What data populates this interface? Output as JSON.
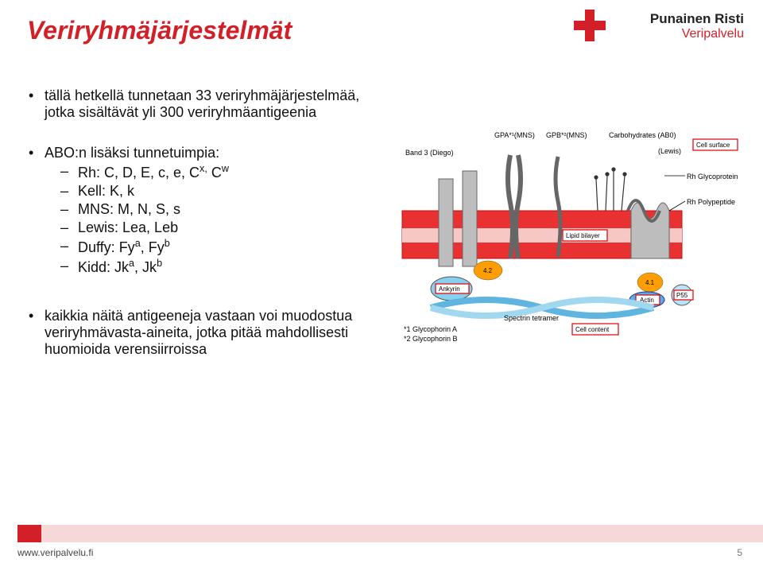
{
  "title": "Veriryhmäjärjestelmät",
  "logo": {
    "line1": "Punainen Risti",
    "line2": "Veripalvelu"
  },
  "bullets": {
    "intro": "tällä hetkellä tunnetaan 33 veriryhmäjärjestelmää, jotka sisältävät yli 300 veriryhmäantigeenia",
    "sub_heading": "ABO:n lisäksi tunnetuimpia:",
    "items": [
      {
        "html": "Rh: C, D, E, c, e, C<sup>x,</sup> C<sup>w</sup>"
      },
      {
        "html": "Kell: K, k"
      },
      {
        "html": "MNS: M, N, S, s"
      },
      {
        "html": "Lewis: Lea, Leb"
      },
      {
        "html": "Duffy: Fy<sup>a</sup>, Fy<sup>b</sup>"
      },
      {
        "html": "Kidd: Jk<sup>a</sup>, Jk<sup>b</sup>"
      }
    ],
    "conclusion": "kaikkia näitä antigeeneja vastaan voi muodostua veriryhmävasta-aineita, jotka pitää mahdollisesti huomioida verensiirroissa"
  },
  "footer": {
    "url": "www.veripalvelu.fi",
    "page": "5"
  },
  "diagram": {
    "cell_surface": "Cell surface",
    "lipid_bilayer": "Lipid bilayer",
    "cell_content": "Cell content",
    "labels": {
      "band3": "Band 3 (Diego)",
      "gpa": "GPA*¹(MNS)",
      "gpb": "GPB*²(MNS)",
      "carb": "Carbohydrates (AB0)",
      "sub_carb": "(Lewis)",
      "rh_glyco": "Rh Glycoprotein",
      "rh_poly": "Rh Polypeptide",
      "actin": "Actin",
      "spectrin": "Spectrin tetramer",
      "ankyrin": "Ankyrin",
      "p55": "P55",
      "note1": "*1 Glycophorin A",
      "note2": "*2 Glycophorin B",
      "n42": "4.2",
      "n41": "4.1"
    },
    "colors": {
      "membrane_bg": "#ffffff",
      "bilayer": "#e93131",
      "bilayer_stroke": "#b11",
      "protein_fill": "#bdbdbd",
      "protein_stroke": "#666",
      "oval": "#ff9e00",
      "actin": "#55acee",
      "spectrin": "#7fc6ee"
    }
  }
}
